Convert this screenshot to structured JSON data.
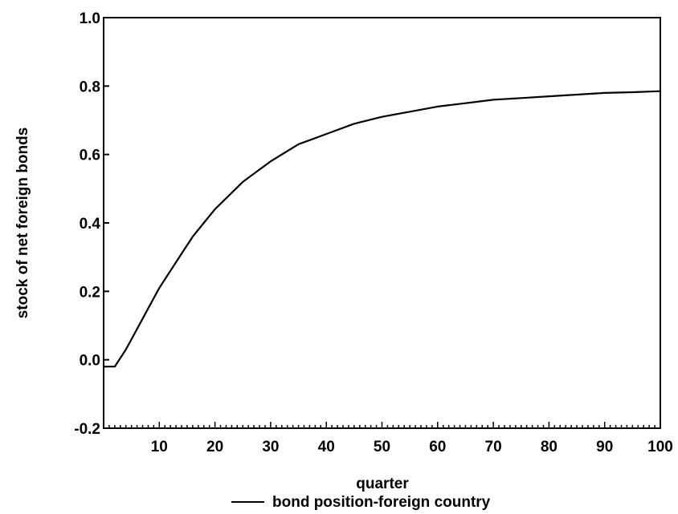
{
  "chart_data": {
    "type": "line",
    "title": "",
    "xlabel": "quarter",
    "ylabel": "stock of net foreign bonds",
    "xlim": [
      0,
      100
    ],
    "ylim": [
      -0.2,
      1.0
    ],
    "xticks": [
      10,
      20,
      30,
      40,
      50,
      60,
      70,
      80,
      90,
      100
    ],
    "xtick_labels": [
      "10",
      "20",
      "30",
      "40",
      "50",
      "60",
      "70",
      "80",
      "90",
      "100"
    ],
    "yticks": [
      -0.2,
      0.0,
      0.2,
      0.4,
      0.6,
      0.8,
      1.0
    ],
    "ytick_labels": [
      "-0.2",
      "0.0",
      "0.2",
      "0.4",
      "0.6",
      "0.8",
      "1.0"
    ],
    "grid": false,
    "legend_position": "bottom-center",
    "series": [
      {
        "name": "bond position-foreign country",
        "color": "#000000",
        "x": [
          0,
          1,
          2,
          4,
          6,
          8,
          10,
          12,
          14,
          16,
          18,
          20,
          25,
          30,
          35,
          40,
          45,
          50,
          55,
          60,
          65,
          70,
          75,
          80,
          85,
          90,
          95,
          100
        ],
        "y": [
          -0.02,
          -0.02,
          -0.02,
          0.03,
          0.09,
          0.15,
          0.21,
          0.26,
          0.31,
          0.36,
          0.4,
          0.44,
          0.52,
          0.58,
          0.63,
          0.66,
          0.69,
          0.71,
          0.725,
          0.74,
          0.75,
          0.76,
          0.765,
          0.77,
          0.775,
          0.78,
          0.782,
          0.785
        ]
      }
    ]
  }
}
